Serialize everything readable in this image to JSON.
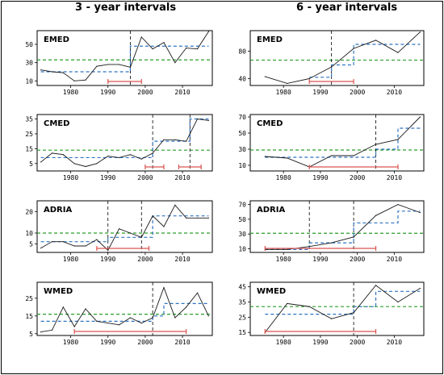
{
  "column_titles": {
    "left": "3 - year intervals",
    "right": "6 - year intervals"
  },
  "colors": {
    "observed": "#1a1a1a",
    "mean": "#2a9d2a",
    "step": "#2f74c0",
    "interval": "#d9534f",
    "changepoint": "#000000"
  },
  "chart_data": [
    {
      "type": "line",
      "panel_label": "EMED",
      "title": "",
      "xlim": [
        1971,
        2018
      ],
      "ylim": [
        5,
        65
      ],
      "xticks": [
        1980,
        1990,
        2000,
        2010
      ],
      "yticks": [
        10,
        30,
        50
      ],
      "x": [
        1972,
        1975,
        1978,
        1981,
        1984,
        1987,
        1990,
        1993,
        1996,
        1999,
        2002,
        2005,
        2008,
        2011,
        2014,
        2017
      ],
      "series": [
        {
          "values": [
            22,
            20,
            19,
            10,
            11,
            26,
            28,
            28,
            25,
            58,
            45,
            52,
            30,
            46,
            45,
            64
          ]
        }
      ],
      "mean_level": 33,
      "step_segments": [
        {
          "x0": 1972,
          "x1": 1996,
          "y": 20
        },
        {
          "x0": 1996,
          "x1": 2017,
          "y": 48
        }
      ],
      "changepoints": [
        1996
      ],
      "intervals": [
        {
          "x0": 1990,
          "x1": 1999
        }
      ]
    },
    {
      "type": "line",
      "panel_label": "EMED",
      "title": "",
      "xlim": [
        1971,
        2018
      ],
      "ylim": [
        30,
        110
      ],
      "xticks": [
        1980,
        1990,
        2000,
        2010
      ],
      "yticks": [
        40,
        80
      ],
      "x": [
        1975,
        1981,
        1987,
        1993,
        1999,
        2005,
        2011,
        2017
      ],
      "series": [
        {
          "values": [
            43,
            33,
            40,
            57,
            84,
            96,
            78,
            108
          ]
        }
      ],
      "mean_level": 67,
      "step_segments": [
        {
          "x0": 1987,
          "x1": 1993,
          "y": 42
        },
        {
          "x0": 1993,
          "x1": 1999,
          "y": 60
        },
        {
          "x0": 1999,
          "x1": 2017,
          "y": 90
        }
      ],
      "changepoints": [
        1993
      ],
      "intervals": [
        {
          "x0": 1987,
          "x1": 1999
        }
      ]
    },
    {
      "type": "line",
      "panel_label": "CMED",
      "title": "",
      "xlim": [
        1971,
        2018
      ],
      "ylim": [
        0,
        38
      ],
      "xticks": [
        1980,
        1990,
        2000,
        2010
      ],
      "yticks": [
        5,
        15,
        25,
        35
      ],
      "x": [
        1972,
        1975,
        1978,
        1981,
        1984,
        1987,
        1990,
        1993,
        1996,
        1999,
        2002,
        2005,
        2008,
        2011,
        2014,
        2017
      ],
      "series": [
        {
          "values": [
            6,
            12,
            11,
            5,
            3,
            5,
            10,
            9,
            11,
            8,
            12,
            21,
            21,
            20,
            35,
            34
          ]
        }
      ],
      "mean_level": 14,
      "step_segments": [
        {
          "x0": 1972,
          "x1": 2002,
          "y": 9
        },
        {
          "x0": 2002,
          "x1": 2012,
          "y": 20
        },
        {
          "x0": 2012,
          "x1": 2017,
          "y": 35
        }
      ],
      "changepoints": [
        2002,
        2012
      ],
      "intervals": [
        {
          "x0": 2000,
          "x1": 2005
        },
        {
          "x0": 2009,
          "x1": 2015
        }
      ]
    },
    {
      "type": "line",
      "panel_label": "CMED",
      "title": "",
      "xlim": [
        1971,
        2018
      ],
      "ylim": [
        3,
        73
      ],
      "xticks": [
        1980,
        1990,
        2000,
        2010
      ],
      "yticks": [
        10,
        30,
        50,
        70
      ],
      "x": [
        1975,
        1981,
        1987,
        1993,
        1999,
        2005,
        2011,
        2017
      ],
      "series": [
        {
          "values": [
            21,
            19,
            8,
            22,
            22,
            36,
            42,
            70
          ]
        }
      ],
      "mean_level": 29,
      "step_segments": [
        {
          "x0": 1975,
          "x1": 2005,
          "y": 20
        },
        {
          "x0": 2005,
          "x1": 2011,
          "y": 30
        },
        {
          "x0": 2011,
          "x1": 2017,
          "y": 56
        }
      ],
      "changepoints": [
        2005
      ],
      "intervals": [
        {
          "x0": 1987,
          "x1": 2011
        }
      ]
    },
    {
      "type": "line",
      "panel_label": "ADRIA",
      "title": "",
      "xlim": [
        1971,
        2018
      ],
      "ylim": [
        1,
        25
      ],
      "xticks": [
        1980,
        1990,
        2000,
        2010
      ],
      "yticks": [
        5,
        10,
        20
      ],
      "x": [
        1972,
        1975,
        1978,
        1981,
        1984,
        1987,
        1990,
        1993,
        1996,
        1999,
        2002,
        2005,
        2008,
        2011,
        2014,
        2017
      ],
      "series": [
        {
          "values": [
            3,
            6,
            6,
            4,
            4,
            7,
            2,
            12,
            10,
            8,
            18,
            13,
            23,
            17,
            17,
            17
          ]
        }
      ],
      "mean_level": 10,
      "step_segments": [
        {
          "x0": 1972,
          "x1": 1990,
          "y": 6
        },
        {
          "x0": 1990,
          "x1": 2002,
          "y": 8
        },
        {
          "x0": 2002,
          "x1": 2017,
          "y": 18
        }
      ],
      "changepoints": [
        1990,
        1999
      ],
      "intervals": [
        {
          "x0": 1987,
          "x1": 2001
        }
      ]
    },
    {
      "type": "line",
      "panel_label": "ADRIA",
      "title": "",
      "xlim": [
        1971,
        2018
      ],
      "ylim": [
        5,
        75
      ],
      "xticks": [
        1980,
        1990,
        2000,
        2010
      ],
      "yticks": [
        10,
        30,
        50,
        70
      ],
      "x": [
        1975,
        1981,
        1987,
        1993,
        1999,
        2005,
        2011,
        2017
      ],
      "series": [
        {
          "values": [
            9,
            9,
            13,
            18,
            26,
            55,
            70,
            59
          ]
        }
      ],
      "mean_level": 31,
      "step_segments": [
        {
          "x0": 1975,
          "x1": 1987,
          "y": 9
        },
        {
          "x0": 1987,
          "x1": 1999,
          "y": 18
        },
        {
          "x0": 1999,
          "x1": 2011,
          "y": 45
        },
        {
          "x0": 2011,
          "x1": 2017,
          "y": 61
        }
      ],
      "changepoints": [
        1987,
        1999
      ],
      "intervals": [
        {
          "x0": 1975,
          "x1": 2005
        }
      ]
    },
    {
      "type": "line",
      "panel_label": "WMED",
      "title": "",
      "xlim": [
        1971,
        2018
      ],
      "ylim": [
        4,
        34
      ],
      "xticks": [
        1980,
        1990,
        2000,
        2010
      ],
      "yticks": [
        5,
        15,
        25
      ],
      "x": [
        1972,
        1975,
        1978,
        1981,
        1984,
        1987,
        1990,
        1993,
        1996,
        1999,
        2002,
        2005,
        2008,
        2011,
        2014,
        2017
      ],
      "series": [
        {
          "values": [
            6,
            7,
            20,
            9,
            19,
            12,
            11,
            10,
            14,
            11,
            14,
            31,
            14,
            20,
            28,
            15
          ]
        }
      ],
      "mean_level": 16,
      "step_segments": [
        {
          "x0": 1972,
          "x1": 2002,
          "y": 12
        },
        {
          "x0": 2002,
          "x1": 2005,
          "y": 15
        },
        {
          "x0": 2005,
          "x1": 2017,
          "y": 22
        }
      ],
      "changepoints": [
        2002
      ],
      "intervals": [
        {
          "x0": 1981,
          "x1": 2011
        }
      ]
    },
    {
      "type": "line",
      "panel_label": "WMED",
      "title": "",
      "xlim": [
        1971,
        2018
      ],
      "ylim": [
        13,
        48
      ],
      "xticks": [
        1980,
        1990,
        2000,
        2010
      ],
      "yticks": [
        15,
        25,
        35,
        45
      ],
      "x": [
        1975,
        1981,
        1987,
        1993,
        1999,
        2005,
        2011,
        2017
      ],
      "series": [
        {
          "values": [
            15,
            34,
            32,
            24,
            28,
            46,
            35,
            44
          ]
        }
      ],
      "mean_level": 32,
      "step_segments": [
        {
          "x0": 1975,
          "x1": 1999,
          "y": 27
        },
        {
          "x0": 1999,
          "x1": 2005,
          "y": 32
        },
        {
          "x0": 2005,
          "x1": 2017,
          "y": 42
        }
      ],
      "changepoints": [
        1999
      ],
      "intervals": [
        {
          "x0": 1975,
          "x1": 2005
        }
      ]
    }
  ]
}
